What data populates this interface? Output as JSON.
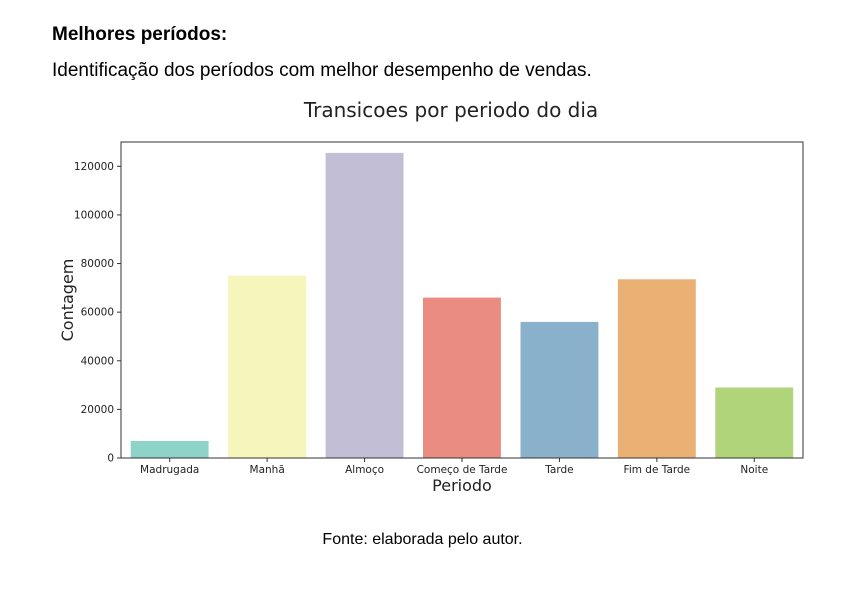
{
  "text": {
    "heading": "Melhores períodos:",
    "intro": "Identificação dos períodos com melhor desempenho de vendas.",
    "caption": "Fonte: elaborada pelo autor."
  },
  "chart_data": {
    "type": "bar",
    "title": "Transicoes por periodo do dia",
    "xlabel": "Periodo",
    "ylabel": "Contagem",
    "categories": [
      "Madrugada",
      "Manhã",
      "Almoço",
      "Começo de Tarde",
      "Tarde",
      "Fim de Tarde",
      "Noite"
    ],
    "values": [
      7000,
      75000,
      125500,
      66000,
      56000,
      73500,
      29000
    ],
    "colors": [
      "#8dd3c7",
      "#f6f5bb",
      "#c2bed6",
      "#ea8c82",
      "#8ab1cc",
      "#ebb174",
      "#b0d47a"
    ],
    "ylim": [
      0,
      130000
    ],
    "yticks": [
      0,
      20000,
      40000,
      60000,
      80000,
      100000,
      120000
    ],
    "grid": false
  }
}
